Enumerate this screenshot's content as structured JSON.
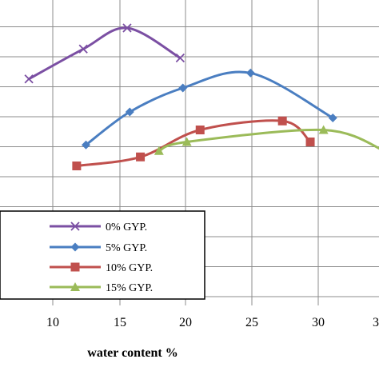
{
  "chart_data": {
    "type": "line",
    "title": "",
    "xlabel": "water content %",
    "ylabel": "",
    "xlim": [
      6,
      30
    ],
    "x_ticks": [
      "10",
      "15",
      "20",
      "25",
      "30",
      "3"
    ],
    "grid": true,
    "legend_position": "lower-left",
    "series": [
      {
        "name": "0% GYP.",
        "color": "#7B4FA3",
        "marker": "x",
        "x": [
          8.2,
          12.3,
          15.6,
          19.6
        ],
        "y": [
          5.3,
          6.3,
          7.0,
          6.0
        ]
      },
      {
        "name": "5% GYP.",
        "color": "#4A7EC1",
        "marker": "diamond",
        "x": [
          12.5,
          15.8,
          19.8,
          24.9,
          31.1
        ],
        "y": [
          3.1,
          4.2,
          5.0,
          5.5,
          4.0
        ]
      },
      {
        "name": "10% GYP.",
        "color": "#C0504D",
        "marker": "square",
        "x": [
          11.8,
          16.6,
          21.1,
          27.3,
          29.4
        ],
        "y": [
          2.4,
          2.7,
          3.6,
          3.9,
          3.2
        ]
      },
      {
        "name": "15% GYP.",
        "color": "#9BBB59",
        "marker": "triangle",
        "x": [
          18.0,
          20.1,
          30.4,
          35.0
        ],
        "y": [
          2.9,
          3.2,
          3.6,
          2.9
        ]
      }
    ]
  }
}
